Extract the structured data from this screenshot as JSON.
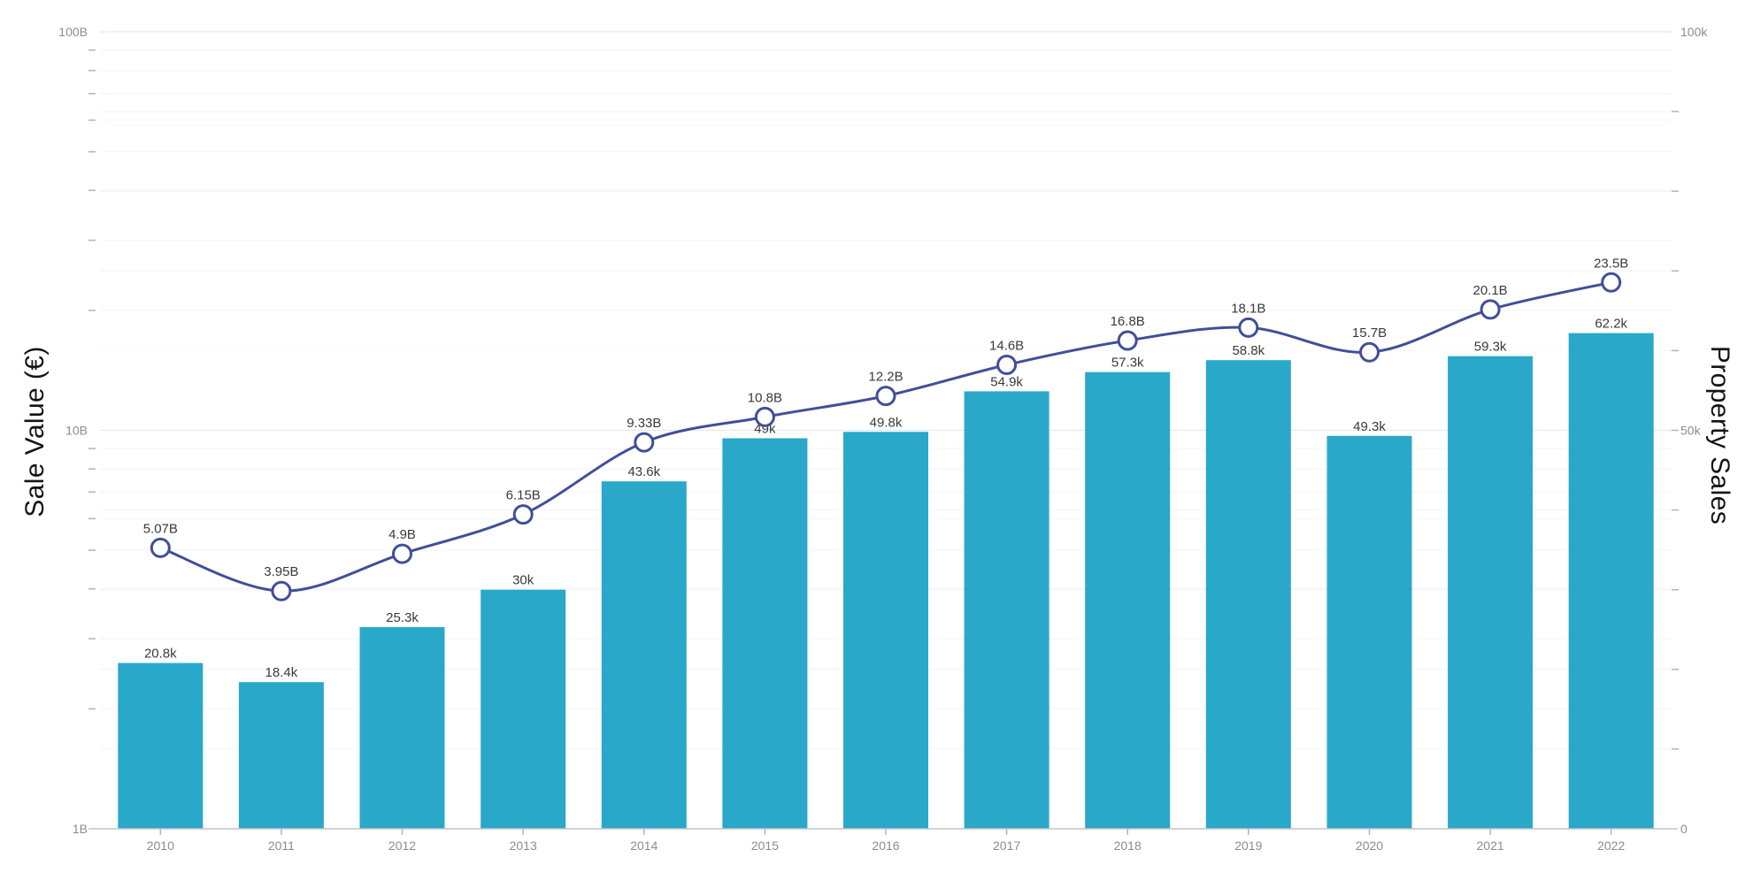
{
  "page": {
    "background": "#ffffff"
  },
  "chart_data": {
    "type": "combo",
    "title": "",
    "categories": [
      "2010",
      "2011",
      "2012",
      "2013",
      "2014",
      "2015",
      "2016",
      "2017",
      "2018",
      "2019",
      "2020",
      "2021",
      "2022"
    ],
    "series": [
      {
        "name": "Property Sales",
        "type": "bar",
        "axis": "right",
        "color": "#29A8C9",
        "values": [
          20800,
          18400,
          25300,
          30000,
          43600,
          49000,
          49800,
          54900,
          57300,
          58800,
          49300,
          59300,
          62200
        ],
        "labels": [
          "20.8k",
          "18.4k",
          "25.3k",
          "30k",
          "43.6k",
          "49k",
          "49.8k",
          "54.9k",
          "57.3k",
          "58.8k",
          "49.3k",
          "59.3k",
          "62.2k"
        ]
      },
      {
        "name": "Sale Value (€)",
        "type": "line",
        "axis": "left",
        "marker": "circle",
        "color": "#404F99",
        "values": [
          5070000000,
          3950000000,
          4900000000,
          6150000000,
          9330000000,
          10800000000,
          12200000000,
          14600000000,
          16800000000,
          18100000000,
          15700000000,
          20100000000,
          23500000000
        ],
        "labels": [
          "5.07B",
          "3.95B",
          "4.9B",
          "6.15B",
          "9.33B",
          "10.8B",
          "12.2B",
          "14.6B",
          "16.8B",
          "18.1B",
          "15.7B",
          "20.1B",
          "23.5B"
        ]
      }
    ],
    "left_axis": {
      "title": "Sale Value (€)",
      "scale": "log",
      "min": 1000000000,
      "max": 100000000000,
      "ticks": [
        {
          "label": "1B",
          "value": 1000000000
        },
        {
          "label": "10B",
          "value": 10000000000
        },
        {
          "label": "100B",
          "value": 100000000000
        }
      ]
    },
    "right_axis": {
      "title": "Property Sales",
      "scale": "linear",
      "min": 0,
      "max": 100000,
      "minor_step": 10000,
      "ticks": [
        {
          "label": "0",
          "value": 0
        },
        {
          "label": "50k",
          "value": 50000
        },
        {
          "label": "100k",
          "value": 100000
        }
      ]
    },
    "legend_position": "none",
    "grid": true
  },
  "colors": {
    "bar": "#29A8C9",
    "line": "#404F99",
    "marker_fill": "#ffffff",
    "grid_major": "#e3e8f4",
    "grid_minor": "#f2f4fa",
    "axis_line": "#c4c4c4",
    "tick": "#b0b4c0",
    "axis_label": "#8c8c8c",
    "data_label": "#3a3a3a",
    "axis_title": "#141414"
  }
}
